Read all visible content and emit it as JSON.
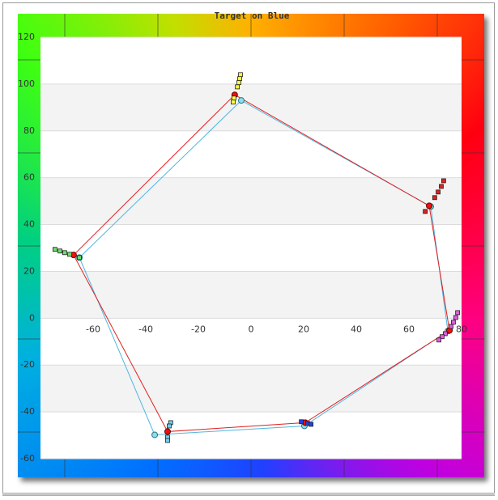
{
  "chart_data": {
    "type": "scatter",
    "title": "Target on Blue",
    "xlim": [
      -80,
      80
    ],
    "ylim": [
      -60,
      120
    ],
    "xticks": [
      -60,
      -40,
      -20,
      0,
      20,
      40,
      60,
      80
    ],
    "yticks": [
      -60,
      -40,
      -20,
      0,
      20,
      40,
      60,
      80,
      100,
      120
    ],
    "grid": true,
    "bands": true,
    "series": [
      {
        "color": "#4fb6e0",
        "marker": "circle",
        "marker_color": "#8fdcef",
        "closed": true,
        "x": [
          -3.7,
          68.3,
          74.8,
          20.3,
          -36.6,
          -65.2
        ],
        "values": [
          93.0,
          47.7,
          -5.5,
          -46.0,
          -49.8,
          25.9
        ]
      },
      {
        "color": "#e02020",
        "marker": "circle",
        "marker_color": "#ee1111",
        "closed": true,
        "x": [
          -6.2,
          67.7,
          75.4,
          20.6,
          -31.7,
          -67.4
        ],
        "values": [
          95.4,
          48.0,
          -5.2,
          -44.6,
          -48.4,
          27.0
        ]
      },
      {
        "color": "#ffff40",
        "marker": "square",
        "x": [
          -4.0,
          -4.3,
          -4.6,
          -5.2,
          -6.5,
          -6.8
        ],
        "values": [
          104.0,
          102.3,
          100.6,
          98.8,
          94.0,
          92.3
        ]
      },
      {
        "color": "#dd2222",
        "marker": "square",
        "x": [
          73.2,
          72.3,
          71.1,
          69.8,
          66.2
        ],
        "values": [
          58.7,
          56.3,
          53.9,
          51.5,
          45.6
        ]
      },
      {
        "color": "#e060e0",
        "marker": "square",
        "x": [
          78.5,
          77.8,
          76.9,
          76.0,
          73.8,
          72.6,
          71.4
        ],
        "values": [
          2.4,
          0.3,
          -1.7,
          -3.5,
          -6.6,
          -7.9,
          -9.3
        ]
      },
      {
        "color": "#2244dd",
        "marker": "square",
        "x": [
          19.1,
          21.5,
          22.8
        ],
        "values": [
          -44.2,
          -44.9,
          -45.3
        ]
      },
      {
        "color": "#70d0f0",
        "marker": "square",
        "x": [
          -30.5,
          -31.1,
          -31.7,
          -31.7
        ],
        "values": [
          -44.6,
          -46.0,
          -50.8,
          -52.2
        ]
      },
      {
        "color": "#70dd70",
        "marker": "square",
        "x": [
          -74.5,
          -72.6,
          -70.8,
          -68.9,
          -65.2
        ],
        "values": [
          29.4,
          28.7,
          28.0,
          27.3,
          25.9
        ]
      }
    ]
  }
}
